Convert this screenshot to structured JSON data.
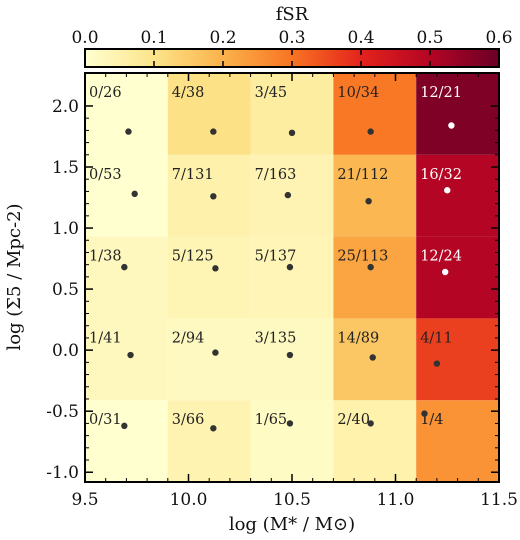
{
  "chart_data": {
    "type": "heatmap",
    "xlabel": "log (M* / M⊙)",
    "ylabel": "log (Σ5 / Mpc-2)",
    "xlim": [
      9.5,
      11.5
    ],
    "ylim": [
      -1.08,
      2.27
    ],
    "x_ticks": [
      "9.5",
      "10.0",
      "10.5",
      "11.0",
      "11.5"
    ],
    "y_ticks": [
      "-1.0",
      "-0.5",
      "0.0",
      "0.5",
      "1.0",
      "1.5",
      "2.0"
    ],
    "colorbar": {
      "label": "fSR",
      "range": [
        0.0,
        0.6
      ],
      "ticks": [
        "0.0",
        "0.1",
        "0.2",
        "0.3",
        "0.4",
        "0.5",
        "0.6"
      ]
    },
    "x_bins": [
      9.5,
      9.9,
      10.3,
      10.7,
      11.1,
      11.5
    ],
    "y_bins": [
      -1.08,
      -0.41,
      0.26,
      0.93,
      1.6,
      2.27
    ],
    "cells": [
      {
        "col": 0,
        "row": 0,
        "label": "0/31",
        "mean_x": 9.69,
        "mean_y": -0.62
      },
      {
        "col": 1,
        "row": 0,
        "label": "3/66",
        "mean_x": 10.12,
        "mean_y": -0.64
      },
      {
        "col": 2,
        "row": 0,
        "label": "1/65",
        "mean_x": 10.49,
        "mean_y": -0.6
      },
      {
        "col": 3,
        "row": 0,
        "label": "2/40",
        "mean_x": 10.88,
        "mean_y": -0.6
      },
      {
        "col": 4,
        "row": 0,
        "label": "1/4",
        "mean_x": 11.14,
        "mean_y": -0.52
      },
      {
        "col": 0,
        "row": 1,
        "label": "1/41",
        "mean_x": 9.72,
        "mean_y": -0.04
      },
      {
        "col": 1,
        "row": 1,
        "label": "2/94",
        "mean_x": 10.13,
        "mean_y": -0.02
      },
      {
        "col": 2,
        "row": 1,
        "label": "3/135",
        "mean_x": 10.49,
        "mean_y": -0.04
      },
      {
        "col": 3,
        "row": 1,
        "label": "14/89",
        "mean_x": 10.89,
        "mean_y": -0.06
      },
      {
        "col": 4,
        "row": 1,
        "label": "4/11",
        "mean_x": 11.2,
        "mean_y": -0.11
      },
      {
        "col": 0,
        "row": 2,
        "label": "1/38",
        "mean_x": 9.69,
        "mean_y": 0.68
      },
      {
        "col": 1,
        "row": 2,
        "label": "5/125",
        "mean_x": 10.13,
        "mean_y": 0.67
      },
      {
        "col": 2,
        "row": 2,
        "label": "5/137",
        "mean_x": 10.49,
        "mean_y": 0.68
      },
      {
        "col": 3,
        "row": 2,
        "label": "25/113",
        "mean_x": 10.88,
        "mean_y": 0.68
      },
      {
        "col": 4,
        "row": 2,
        "label": "12/24",
        "mean_x": 11.24,
        "mean_y": 0.64
      },
      {
        "col": 0,
        "row": 3,
        "label": "0/53",
        "mean_x": 9.74,
        "mean_y": 1.28
      },
      {
        "col": 1,
        "row": 3,
        "label": "7/131",
        "mean_x": 10.12,
        "mean_y": 1.26
      },
      {
        "col": 2,
        "row": 3,
        "label": "7/163",
        "mean_x": 10.48,
        "mean_y": 1.27
      },
      {
        "col": 3,
        "row": 3,
        "label": "21/112",
        "mean_x": 10.87,
        "mean_y": 1.22
      },
      {
        "col": 4,
        "row": 3,
        "label": "16/32",
        "mean_x": 11.25,
        "mean_y": 1.31
      },
      {
        "col": 0,
        "row": 4,
        "label": "0/26",
        "mean_x": 9.71,
        "mean_y": 1.79
      },
      {
        "col": 1,
        "row": 4,
        "label": "4/38",
        "mean_x": 10.12,
        "mean_y": 1.79
      },
      {
        "col": 2,
        "row": 4,
        "label": "3/45",
        "mean_x": 10.5,
        "mean_y": 1.78
      },
      {
        "col": 3,
        "row": 4,
        "label": "10/34",
        "mean_x": 10.88,
        "mean_y": 1.79
      },
      {
        "col": 4,
        "row": 4,
        "label": "12/21",
        "mean_x": 11.27,
        "mean_y": 1.84
      }
    ]
  }
}
